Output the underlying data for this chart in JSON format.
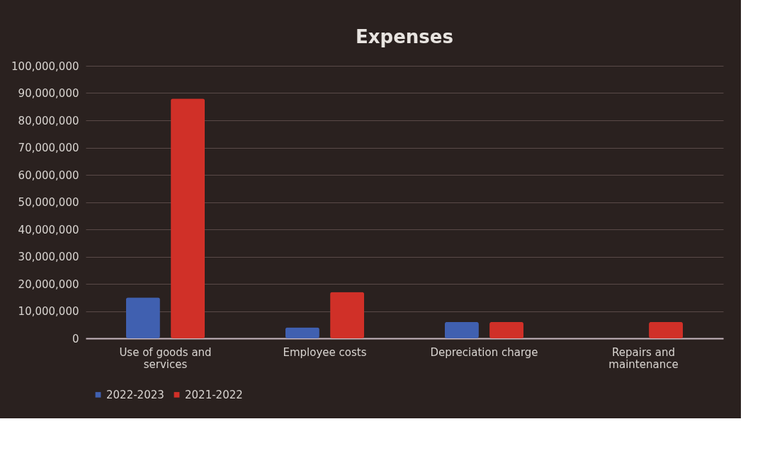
{
  "chart_data": {
    "type": "bar",
    "title": "Expenses",
    "categories": [
      "Use of goods and services",
      "Employee costs",
      "Depreciation charge",
      "Repairs and maintenance"
    ],
    "series": [
      {
        "name": "2022-2023",
        "color": "#4060b0",
        "values": [
          15000000,
          4000000,
          6000000,
          null
        ]
      },
      {
        "name": "2021-2022",
        "color": "#d03028",
        "values": [
          88000000,
          17000000,
          6000000,
          6000000
        ]
      }
    ],
    "ylim": [
      0,
      100000000
    ],
    "yticks": [
      {
        "value": 0,
        "label": "0"
      },
      {
        "value": 10000000,
        "label": "10,000,000"
      },
      {
        "value": 20000000,
        "label": "20,000,000"
      },
      {
        "value": 30000000,
        "label": "30,000,000"
      },
      {
        "value": 40000000,
        "label": "40,000,000"
      },
      {
        "value": 50000000,
        "label": "50,000,000"
      },
      {
        "value": 60000000,
        "label": "60,000,000"
      },
      {
        "value": 70000000,
        "label": "70,000,000"
      },
      {
        "value": 80000000,
        "label": "80,000,000"
      },
      {
        "value": 90000000,
        "label": "90,000,000"
      },
      {
        "value": 100000000,
        "label": "100,000,000"
      }
    ],
    "grid": "y",
    "legend": "bottom"
  }
}
